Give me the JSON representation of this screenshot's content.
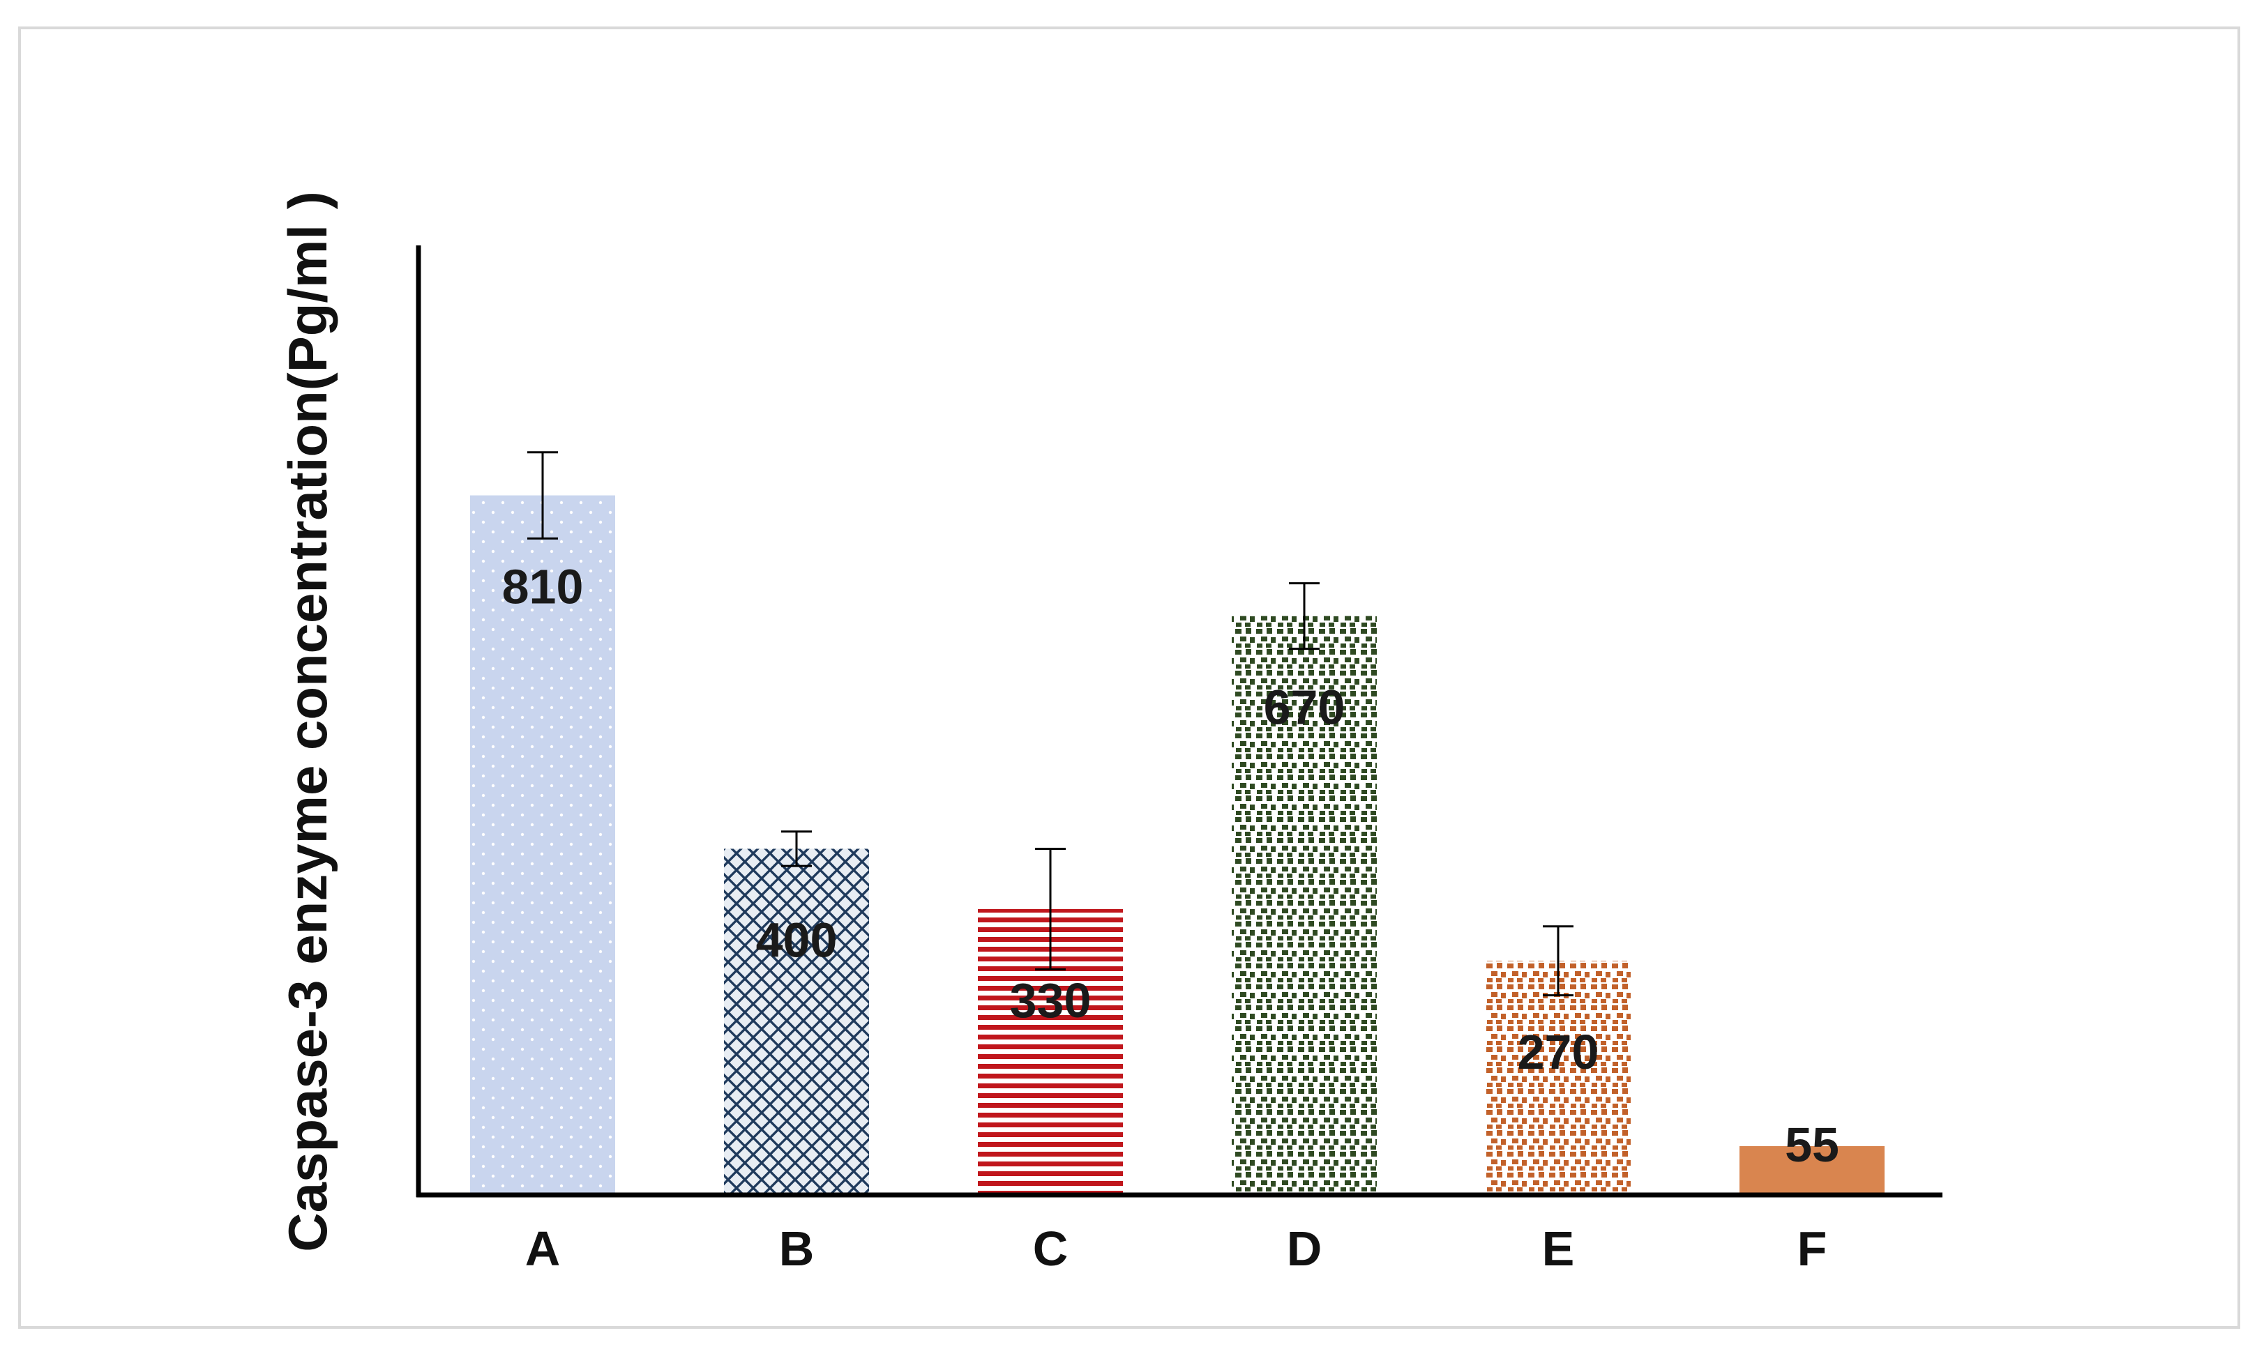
{
  "chart_data": {
    "type": "bar",
    "title": "",
    "xlabel": "",
    "ylabel": "Caspase-3 enzyme concentration(Pg/ml )",
    "categories": [
      "A",
      "B",
      "C",
      "D",
      "E",
      "F"
    ],
    "values": [
      810,
      400,
      330,
      670,
      270,
      55
    ],
    "data_labels": [
      "810",
      "400",
      "330",
      "670",
      "270",
      "55"
    ],
    "error": [
      50,
      20,
      70,
      38,
      40,
      0
    ],
    "ylim": [
      0,
      1100
    ],
    "grid": false,
    "legend": "none",
    "colors": [
      "#c9d5ee",
      "#1f3a5c",
      "#c0161c",
      "#2f4a22",
      "#c2612a",
      "#d9854f"
    ]
  }
}
